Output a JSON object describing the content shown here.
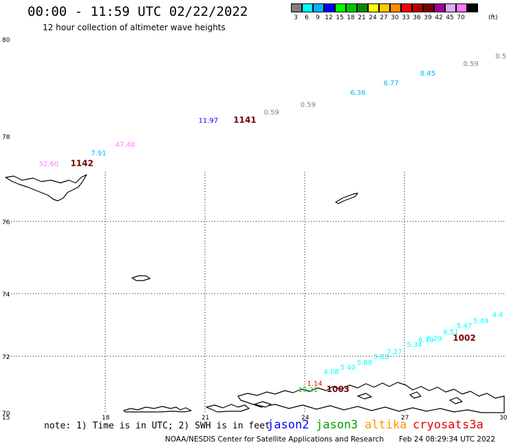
{
  "header": {
    "title": "00:00 - 11:59 UTC 02/22/2022",
    "subtitle": "12 hour collection of altimeter wave heights"
  },
  "legend": {
    "unit": "(ft)",
    "items": [
      {
        "label": "3",
        "color": "#808080"
      },
      {
        "label": "6",
        "color": "#00ffff"
      },
      {
        "label": "9",
        "color": "#00b4ff"
      },
      {
        "label": "12",
        "color": "#0000ff"
      },
      {
        "label": "15",
        "color": "#00ff00"
      },
      {
        "label": "18",
        "color": "#00c800"
      },
      {
        "label": "21",
        "color": "#008c00"
      },
      {
        "label": "24",
        "color": "#ffff00"
      },
      {
        "label": "27",
        "color": "#ffc800"
      },
      {
        "label": "30",
        "color": "#ff8c00"
      },
      {
        "label": "33",
        "color": "#ff0000"
      },
      {
        "label": "36",
        "color": "#b40000"
      },
      {
        "label": "39",
        "color": "#780000"
      },
      {
        "label": "42",
        "color": "#a000a0"
      },
      {
        "label": "45",
        "color": "#dcaaff"
      },
      {
        "label": "70",
        "color": "#ff78ff"
      },
      {
        "label": "",
        "color": "#000000"
      }
    ]
  },
  "map": {
    "lat_labels": [
      "80",
      "78",
      "76",
      "74",
      "72",
      "70"
    ],
    "lon_labels": [
      "15",
      "18",
      "21",
      "24",
      "27",
      "30"
    ],
    "observations": [
      {
        "text": "0.59",
        "lon": 29.0,
        "lat": 79.45,
        "color": "#808080"
      },
      {
        "text": "0.5",
        "lon": 29.9,
        "lat": 79.6,
        "color": "#808080"
      },
      {
        "text": "8.45",
        "lon": 27.7,
        "lat": 79.25,
        "color": "#00b4ff"
      },
      {
        "text": "6.77",
        "lon": 26.6,
        "lat": 79.05,
        "color": "#00b4ff"
      },
      {
        "text": "6.36",
        "lon": 25.6,
        "lat": 78.85,
        "color": "#00b4ff"
      },
      {
        "text": "0.59",
        "lon": 24.1,
        "lat": 78.6,
        "color": "#808080"
      },
      {
        "text": "0.59",
        "lon": 23.0,
        "lat": 78.45,
        "color": "#808080"
      },
      {
        "text": "1141",
        "lon": 22.2,
        "lat": 78.28,
        "color": "#780000",
        "bold": true
      },
      {
        "text": "11.97",
        "lon": 21.1,
        "lat": 78.28,
        "color": "#0000ff"
      },
      {
        "text": "47.48",
        "lon": 18.6,
        "lat": 77.75,
        "color": "#ff78ff"
      },
      {
        "text": "7.91",
        "lon": 17.8,
        "lat": 77.55,
        "color": "#00b4ff"
      },
      {
        "text": "1142",
        "lon": 17.3,
        "lat": 77.3,
        "color": "#780000",
        "bold": true
      },
      {
        "text": "52.60",
        "lon": 16.3,
        "lat": 77.3,
        "color": "#ff78ff"
      },
      {
        "text": "4.4",
        "lon": 29.8,
        "lat": 73.25,
        "color": "#00ffff"
      },
      {
        "text": "5.49",
        "lon": 29.3,
        "lat": 73.05,
        "color": "#00ffff"
      },
      {
        "text": "5.47",
        "lon": 28.8,
        "lat": 72.9,
        "color": "#00ffff"
      },
      {
        "text": "1002",
        "lon": 28.8,
        "lat": 72.5,
        "color": "#780000",
        "bold": true
      },
      {
        "text": "6.51",
        "lon": 28.4,
        "lat": 72.7,
        "color": "#00ffff"
      },
      {
        "text": "6.29",
        "lon": 27.9,
        "lat": 72.5,
        "color": "#00ffff"
      },
      {
        "text": "6.19",
        "lon": 27.65,
        "lat": 72.45,
        "color": "#00ffff"
      },
      {
        "text": "5.34",
        "lon": 27.3,
        "lat": 72.3,
        "color": "#00ffff"
      },
      {
        "text": "7.27",
        "lon": 26.7,
        "lat": 72.07,
        "color": "#00ffff"
      },
      {
        "text": "5.83",
        "lon": 26.3,
        "lat": 71.9,
        "color": "#00ffff"
      },
      {
        "text": "5.88",
        "lon": 25.8,
        "lat": 71.7,
        "color": "#00ffff"
      },
      {
        "text": "5.40",
        "lon": 25.3,
        "lat": 71.52,
        "color": "#00ffff"
      },
      {
        "text": "4.08",
        "lon": 24.8,
        "lat": 71.37,
        "color": "#00ffff"
      },
      {
        "text": "1.14",
        "lon": 24.3,
        "lat": 70.95,
        "color": "#ff0000"
      },
      {
        "text": "1003",
        "lon": 25.0,
        "lat": 70.73,
        "color": "#780000",
        "bold": true
      },
      {
        "text": "19.21",
        "lon": 24.1,
        "lat": 70.73,
        "color": "#00c800"
      }
    ]
  },
  "note": "note: 1) Time is in UTC; 2) SWH is in feet",
  "satellites": [
    {
      "name": "jason2",
      "color": "#0000ff"
    },
    {
      "name": "jason3",
      "color": "#00a000"
    },
    {
      "name": "altika",
      "color": "#ff9600"
    },
    {
      "name": "cryosat",
      "color": "#e60000"
    },
    {
      "name": "s3a",
      "color": "#e60000"
    }
  ],
  "footer": {
    "credit": "NOAA/NESDIS Center for Satellite Applications and Research",
    "timestamp": "Feb 24 08:29:34 UTC 2022"
  }
}
